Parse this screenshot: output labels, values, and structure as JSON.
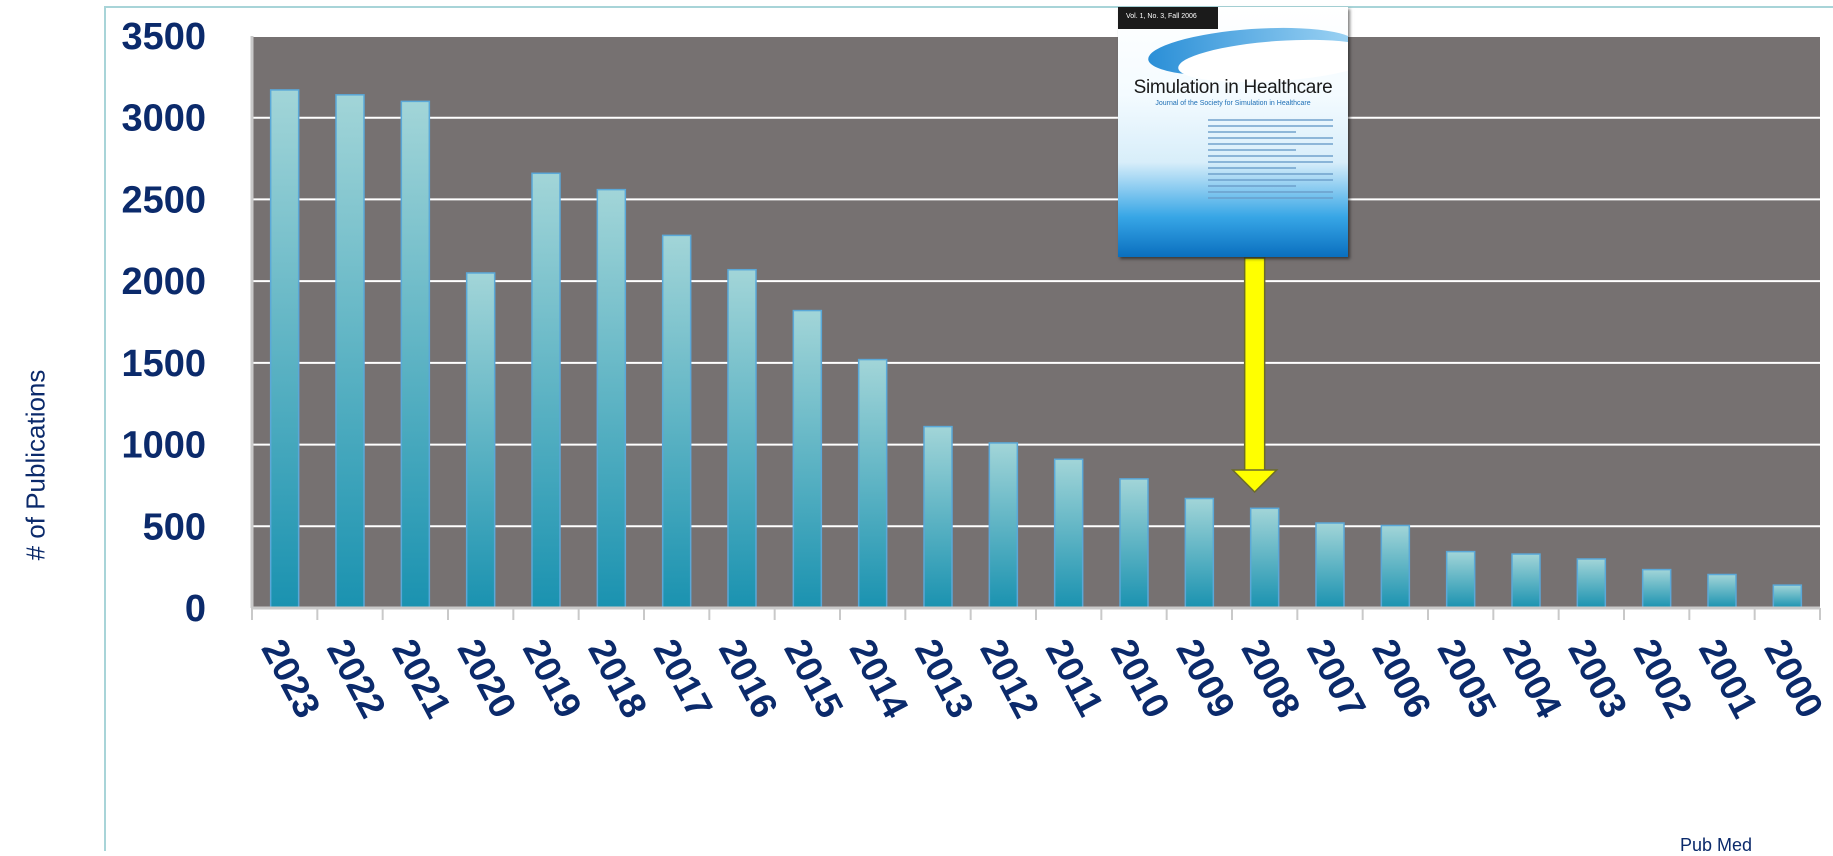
{
  "chart_data": {
    "type": "bar",
    "categories": [
      "2023",
      "2022",
      "2021",
      "2020",
      "2019",
      "2018",
      "2017",
      "2016",
      "2015",
      "2014",
      "2013",
      "2012",
      "2011",
      "2010",
      "2009",
      "2008",
      "2007",
      "2006",
      "2005",
      "2004",
      "2003",
      "2002",
      "2001",
      "2000"
    ],
    "values": [
      3170,
      3140,
      3100,
      2050,
      2660,
      2560,
      2280,
      2070,
      1820,
      1520,
      1110,
      1010,
      910,
      790,
      670,
      610,
      520,
      505,
      345,
      330,
      300,
      235,
      205,
      140
    ],
    "ylabel": "# of Publications",
    "xlabel": "",
    "ylim": [
      0,
      3500
    ],
    "yticks": [
      0,
      500,
      1000,
      1500,
      2000,
      2500,
      3000,
      3500
    ],
    "grid": true,
    "colors": {
      "plot_background": "#767171",
      "bar_top": "#a2d5d8",
      "bar_bottom": "#1a92b0",
      "text": "#0b2a6b",
      "arrow": "#ffff00"
    },
    "annotation": {
      "type": "arrow-with-image",
      "image_text": {
        "title": "Simulation in Healthcare",
        "subtitle": "Journal of the Society for Simulation in Healthcare",
        "volume": "Vol. 1, No. 3, Fall 2006"
      },
      "points_to_category": "2008"
    }
  },
  "source_note": "Pub Med"
}
